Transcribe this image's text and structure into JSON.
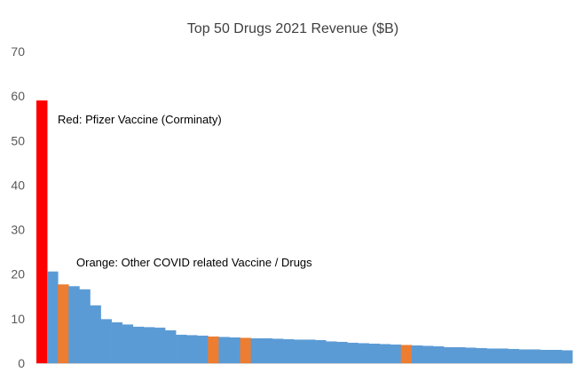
{
  "chart_data": {
    "type": "bar",
    "title": "Top 50 Drugs 2021 Revenue ($B)",
    "xlabel": "",
    "ylabel": "",
    "ylim": [
      0,
      70
    ],
    "yticks": [
      0,
      10,
      20,
      30,
      40,
      50,
      60,
      70
    ],
    "grid": false,
    "legend": "none",
    "values": [
      59.0,
      20.6,
      17.7,
      17.3,
      16.6,
      13.0,
      9.9,
      9.2,
      8.7,
      8.2,
      8.1,
      8.0,
      7.4,
      6.4,
      6.3,
      6.2,
      6.0,
      5.9,
      5.8,
      5.7,
      5.6,
      5.6,
      5.5,
      5.4,
      5.3,
      5.3,
      5.2,
      4.9,
      4.8,
      4.6,
      4.5,
      4.4,
      4.3,
      4.2,
      4.1,
      4.0,
      3.9,
      3.8,
      3.6,
      3.6,
      3.5,
      3.4,
      3.3,
      3.3,
      3.2,
      3.1,
      3.1,
      3.0,
      3.0,
      2.9
    ],
    "bar_colors": [
      "#ff0000",
      "#5b9bd5",
      "#ed7d31",
      "#5b9bd5",
      "#5b9bd5",
      "#5b9bd5",
      "#5b9bd5",
      "#5b9bd5",
      "#5b9bd5",
      "#5b9bd5",
      "#5b9bd5",
      "#5b9bd5",
      "#5b9bd5",
      "#5b9bd5",
      "#5b9bd5",
      "#5b9bd5",
      "#ed7d31",
      "#5b9bd5",
      "#5b9bd5",
      "#ed7d31",
      "#5b9bd5",
      "#5b9bd5",
      "#5b9bd5",
      "#5b9bd5",
      "#5b9bd5",
      "#5b9bd5",
      "#5b9bd5",
      "#5b9bd5",
      "#5b9bd5",
      "#5b9bd5",
      "#5b9bd5",
      "#5b9bd5",
      "#5b9bd5",
      "#5b9bd5",
      "#ed7d31",
      "#5b9bd5",
      "#5b9bd5",
      "#5b9bd5",
      "#5b9bd5",
      "#5b9bd5",
      "#5b9bd5",
      "#5b9bd5",
      "#5b9bd5",
      "#5b9bd5",
      "#5b9bd5",
      "#5b9bd5",
      "#5b9bd5",
      "#5b9bd5",
      "#5b9bd5",
      "#5b9bd5"
    ],
    "annotations": [
      "Red: Pfizer Vaccine (Corminaty)",
      "Orange: Other COVID related Vaccine / Drugs"
    ],
    "colors": {
      "highlight": "#ff0000",
      "covid": "#ed7d31",
      "default": "#5b9bd5"
    }
  }
}
